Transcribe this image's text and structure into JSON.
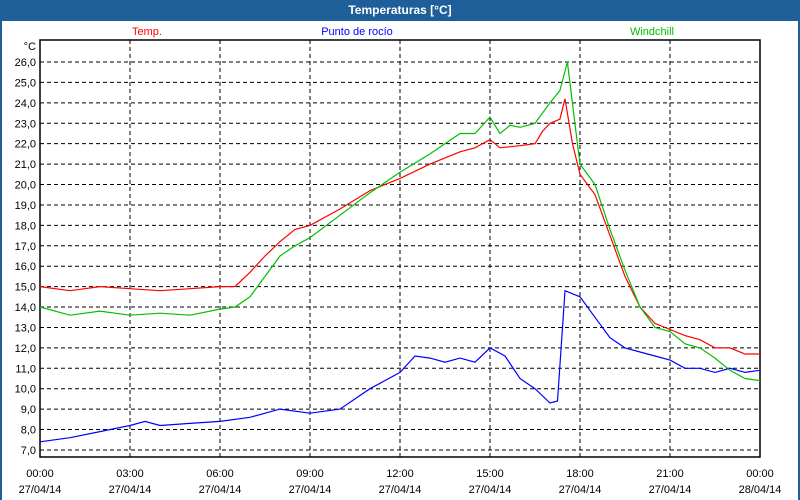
{
  "window": {
    "title": "Temperaturas [°C]"
  },
  "chart_data": {
    "type": "line",
    "title": "Temperaturas [°C]",
    "ylabel": "°C",
    "xlabel": "",
    "ylim": [
      6.5,
      26.9
    ],
    "xlim": [
      0,
      24
    ],
    "grid": true,
    "y_ticks": [
      "7,0",
      "8,0",
      "9,0",
      "10,0",
      "11,0",
      "12,0",
      "13,0",
      "14,0",
      "15,0",
      "16,0",
      "17,0",
      "18,0",
      "19,0",
      "20,0",
      "21,0",
      "22,0",
      "23,0",
      "24,0",
      "25,0",
      "26,0"
    ],
    "x_ticks": [
      {
        "time": "00:00",
        "date": "27/04/14"
      },
      {
        "time": "03:00",
        "date": "27/04/14"
      },
      {
        "time": "06:00",
        "date": "27/04/14"
      },
      {
        "time": "09:00",
        "date": "27/04/14"
      },
      {
        "time": "12:00",
        "date": "27/04/14"
      },
      {
        "time": "15:00",
        "date": "27/04/14"
      },
      {
        "time": "18:00",
        "date": "27/04/14"
      },
      {
        "time": "21:00",
        "date": "27/04/14"
      },
      {
        "time": "00:00",
        "date": "28/04/14"
      }
    ],
    "legend_position": "top",
    "series": [
      {
        "name": "Temp.",
        "color": "#ff0000",
        "x": [
          0,
          1,
          2,
          3,
          4,
          5,
          6,
          6.5,
          7,
          7.5,
          8,
          8.5,
          9,
          10,
          11,
          12,
          13,
          14,
          14.5,
          15,
          15.33,
          16,
          16.5,
          16.75,
          17,
          17.33,
          17.5,
          17.75,
          18,
          18.5,
          19,
          19.5,
          20,
          20.5,
          21,
          21.5,
          22,
          22.5,
          23,
          23.5,
          24
        ],
        "y": [
          15.0,
          14.8,
          15.0,
          14.9,
          14.8,
          14.9,
          15.0,
          15.0,
          15.7,
          16.5,
          17.2,
          17.8,
          18.0,
          18.8,
          19.7,
          20.3,
          21.0,
          21.6,
          21.8,
          22.2,
          21.8,
          21.9,
          22.0,
          22.6,
          23.0,
          23.2,
          24.2,
          22.0,
          20.5,
          19.5,
          17.5,
          15.5,
          14.0,
          13.2,
          12.9,
          12.6,
          12.4,
          12.0,
          12.0,
          11.7,
          11.7
        ]
      },
      {
        "name": "Punto de rocío",
        "color": "#0000ff",
        "x": [
          0,
          1,
          2,
          3,
          3.5,
          4,
          5,
          6,
          7,
          8,
          9,
          10,
          11,
          12,
          12.5,
          13,
          13.5,
          14,
          14.5,
          15,
          15.5,
          16,
          16.5,
          17,
          17.25,
          17.5,
          18,
          18.5,
          19,
          19.5,
          20,
          20.5,
          21,
          21.5,
          22,
          22.5,
          23,
          23.5,
          24
        ],
        "y": [
          7.4,
          7.6,
          7.9,
          8.2,
          8.4,
          8.2,
          8.3,
          8.4,
          8.6,
          9.0,
          8.8,
          9.0,
          10.0,
          10.8,
          11.6,
          11.5,
          11.3,
          11.5,
          11.3,
          12.0,
          11.6,
          10.5,
          10.0,
          9.3,
          9.4,
          14.8,
          14.5,
          13.5,
          12.5,
          12.0,
          11.8,
          11.6,
          11.4,
          11.0,
          11.0,
          10.8,
          11.0,
          10.8,
          10.9
        ]
      },
      {
        "name": "Windchill",
        "color": "#00c000",
        "x": [
          0,
          1,
          2,
          3,
          4,
          5,
          6,
          6.5,
          7,
          7.5,
          8,
          8.5,
          9,
          10,
          11,
          12,
          13,
          14,
          14.5,
          15,
          15.33,
          15.67,
          16,
          16.5,
          17,
          17.33,
          17.58,
          17.83,
          18,
          18.5,
          19,
          19.5,
          20,
          20.5,
          21,
          21.5,
          22,
          22.5,
          23,
          23.5,
          24
        ],
        "y": [
          14.0,
          13.6,
          13.8,
          13.6,
          13.7,
          13.6,
          13.9,
          14.0,
          14.5,
          15.5,
          16.5,
          17.0,
          17.4,
          18.5,
          19.6,
          20.6,
          21.5,
          22.5,
          22.5,
          23.3,
          22.5,
          22.9,
          22.8,
          23.0,
          24.0,
          24.6,
          26.0,
          23.0,
          21.0,
          20.0,
          17.8,
          15.8,
          14.0,
          13.0,
          12.8,
          12.2,
          12.0,
          11.5,
          10.9,
          10.5,
          10.4
        ]
      }
    ]
  }
}
